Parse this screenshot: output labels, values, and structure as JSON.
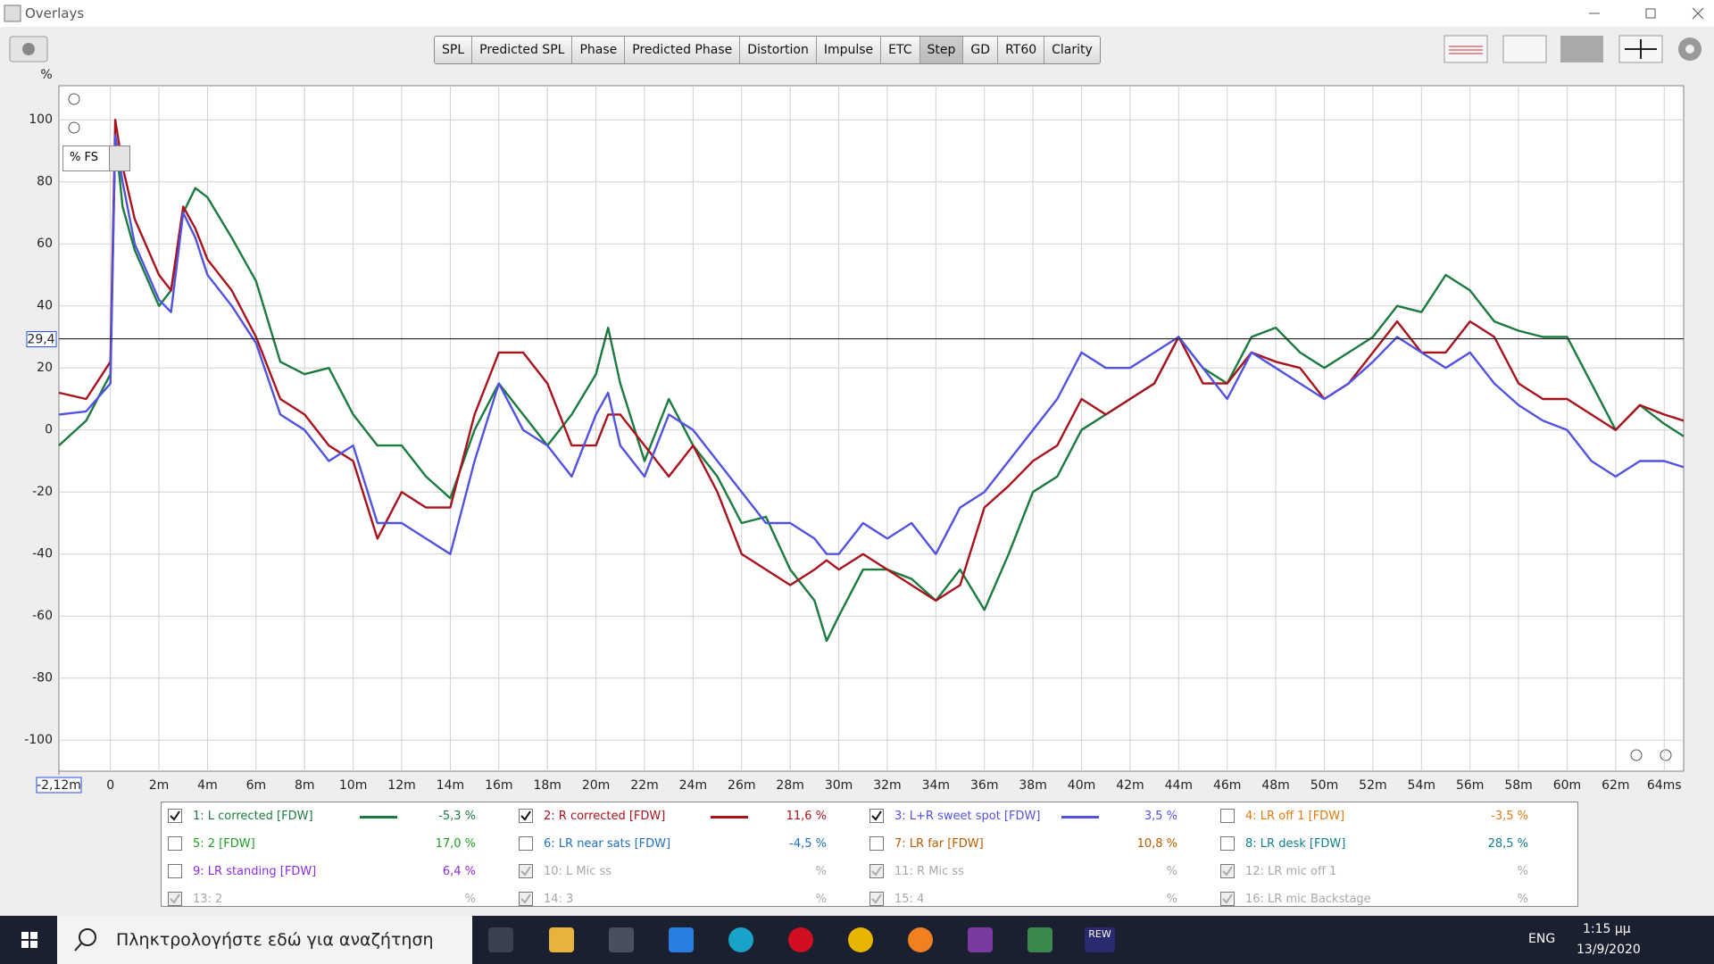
{
  "window": {
    "title": "Overlays"
  },
  "toolbar": {
    "buttons": [
      {
        "label": "SPL",
        "selected": false
      },
      {
        "label": "Predicted SPL",
        "selected": false
      },
      {
        "label": "Phase",
        "selected": false
      },
      {
        "label": "Predicted Phase",
        "selected": false
      },
      {
        "label": "Distortion",
        "selected": false
      },
      {
        "label": "Impulse",
        "selected": false
      },
      {
        "label": "ETC",
        "selected": false
      },
      {
        "label": "Step",
        "selected": true
      },
      {
        "label": "GD",
        "selected": false
      },
      {
        "label": "RT60",
        "selected": false
      },
      {
        "label": "Clarity",
        "selected": false
      }
    ]
  },
  "unit_dropdown": "% FS",
  "chart_data": {
    "type": "line",
    "y_label": "%",
    "xlim": [
      -2.12,
      64.8
    ],
    "ylim": [
      -110,
      111
    ],
    "grid": true,
    "xticks": [
      {
        "value": -2.12,
        "label": "-2,12m"
      },
      0,
      {
        "value": 2,
        "label": "2m"
      },
      {
        "value": 4,
        "label": "4m"
      },
      {
        "value": 6,
        "label": "6m"
      },
      {
        "value": 8,
        "label": "8m"
      },
      {
        "value": 10,
        "label": "10m"
      },
      {
        "value": 12,
        "label": "12m"
      },
      {
        "value": 14,
        "label": "14m"
      },
      {
        "value": 16,
        "label": "16m"
      },
      {
        "value": 18,
        "label": "18m"
      },
      {
        "value": 20,
        "label": "20m"
      },
      {
        "value": 22,
        "label": "22m"
      },
      {
        "value": 24,
        "label": "24m"
      },
      {
        "value": 26,
        "label": "26m"
      },
      {
        "value": 28,
        "label": "28m"
      },
      {
        "value": 30,
        "label": "30m"
      },
      {
        "value": 32,
        "label": "32m"
      },
      {
        "value": 34,
        "label": "34m"
      },
      {
        "value": 36,
        "label": "36m"
      },
      {
        "value": 38,
        "label": "38m"
      },
      {
        "value": 40,
        "label": "40m"
      },
      {
        "value": 42,
        "label": "42m"
      },
      {
        "value": 44,
        "label": "44m"
      },
      {
        "value": 46,
        "label": "46m"
      },
      {
        "value": 48,
        "label": "48m"
      },
      {
        "value": 50,
        "label": "50m"
      },
      {
        "value": 52,
        "label": "52m"
      },
      {
        "value": 54,
        "label": "54m"
      },
      {
        "value": 56,
        "label": "56m"
      },
      {
        "value": 58,
        "label": "58m"
      },
      {
        "value": 60,
        "label": "60m"
      },
      {
        "value": 62,
        "label": "62m"
      },
      {
        "value": 64,
        "label": "64ms"
      }
    ],
    "yticks": [
      100,
      80,
      60,
      40,
      20,
      0,
      -20,
      -40,
      -60,
      -80,
      -100
    ],
    "cursor": {
      "value": 29.4,
      "label": "29,4"
    },
    "x": [
      -2.12,
      -1,
      0,
      0.2,
      0.5,
      1,
      2,
      2.5,
      3,
      3.5,
      4,
      5,
      6,
      7,
      8,
      9,
      10,
      11,
      12,
      13,
      14,
      15,
      16,
      17,
      18,
      19,
      20,
      20.5,
      21,
      22,
      23,
      24,
      25,
      26,
      27,
      28,
      29,
      29.5,
      30,
      31,
      32,
      33,
      34,
      35,
      36,
      37,
      38,
      39,
      40,
      41,
      42,
      43,
      44,
      45,
      46,
      47,
      48,
      49,
      50,
      51,
      52,
      53,
      54,
      55,
      56,
      57,
      58,
      59,
      60,
      61,
      62,
      63,
      64,
      64.8
    ],
    "series": [
      {
        "name": "1: L corrected [FDW]",
        "color": "#1b7a3e",
        "reading": "-5,3 %",
        "values": [
          -5,
          3,
          18,
          95,
          72,
          58,
          40,
          45,
          70,
          78,
          75,
          62,
          48,
          22,
          18,
          20,
          5,
          -5,
          -5,
          -15,
          -22,
          0,
          15,
          5,
          -5,
          5,
          18,
          33,
          15,
          -10,
          10,
          -5,
          -15,
          -30,
          -28,
          -45,
          -55,
          -68,
          -60,
          -45,
          -45,
          -48,
          -55,
          -45,
          -58,
          -40,
          -20,
          -15,
          0,
          5,
          10,
          15,
          30,
          20,
          15,
          30,
          33,
          25,
          20,
          25,
          30,
          40,
          38,
          50,
          45,
          35,
          32,
          30,
          30,
          15,
          0,
          8,
          2,
          -2
        ]
      },
      {
        "name": "2: R corrected [FDW]",
        "color": "#a8121c",
        "reading": "11,6 %",
        "values": [
          12,
          10,
          22,
          100,
          85,
          68,
          50,
          45,
          72,
          65,
          55,
          45,
          30,
          10,
          5,
          -5,
          -10,
          -35,
          -20,
          -25,
          -25,
          5,
          25,
          25,
          15,
          -5,
          -5,
          5,
          5,
          -5,
          -15,
          -5,
          -20,
          -40,
          -45,
          -50,
          -45,
          -42,
          -45,
          -40,
          -45,
          -50,
          -55,
          -50,
          -25,
          -18,
          -10,
          -5,
          10,
          5,
          10,
          15,
          30,
          15,
          15,
          25,
          22,
          20,
          10,
          15,
          25,
          35,
          25,
          25,
          35,
          30,
          15,
          10,
          10,
          5,
          0,
          8,
          5,
          3
        ]
      },
      {
        "name": "3: L+R sweet spot [FDW]",
        "color": "#5252e0",
        "reading": "3,5 %",
        "values": [
          5,
          6,
          15,
          95,
          80,
          60,
          42,
          38,
          70,
          62,
          50,
          40,
          28,
          5,
          0,
          -10,
          -5,
          -30,
          -30,
          -35,
          -40,
          -10,
          15,
          0,
          -5,
          -15,
          5,
          12,
          -5,
          -15,
          5,
          0,
          -10,
          -20,
          -30,
          -30,
          -35,
          -40,
          -40,
          -30,
          -35,
          -30,
          -40,
          -25,
          -20,
          -10,
          0,
          10,
          25,
          20,
          20,
          25,
          30,
          20,
          10,
          25,
          20,
          15,
          10,
          15,
          22,
          30,
          25,
          20,
          25,
          15,
          8,
          3,
          0,
          -10,
          -15,
          -10,
          -10,
          -12
        ]
      }
    ]
  },
  "other_overlays": [
    {
      "label": "4: LR off 1 [FDW]",
      "color": "#e07a10",
      "reading": "-3,5 %",
      "checked": false,
      "enabled": true
    },
    {
      "label": "5: 2 [FDW]",
      "color": "#1fa01f",
      "reading": "17,0 %",
      "checked": false,
      "enabled": true
    },
    {
      "label": "6: LR near sats [FDW]",
      "color": "#1f6ec0",
      "reading": "-4,5 %",
      "checked": false,
      "enabled": true
    },
    {
      "label": "7: LR far [FDW]",
      "color": "#c05a00",
      "reading": "10,8 %",
      "checked": false,
      "enabled": true
    },
    {
      "label": "8: LR desk [FDW]",
      "color": "#0f7f86",
      "reading": "28,5 %",
      "checked": false,
      "enabled": true
    },
    {
      "label": "9: LR standing [FDW]",
      "color": "#8a2be2",
      "reading": "6,4 %",
      "checked": false,
      "enabled": true
    },
    {
      "label": "10: L Mic ss",
      "color": "#a8a8a8",
      "reading": "%",
      "checked": true,
      "enabled": false
    },
    {
      "label": "11: R Mic ss",
      "color": "#a8a8a8",
      "reading": "%",
      "checked": true,
      "enabled": false
    },
    {
      "label": "12: LR mic off 1",
      "color": "#a8a8a8",
      "reading": "%",
      "checked": true,
      "enabled": false
    },
    {
      "label": "13: 2",
      "color": "#a8a8a8",
      "reading": "%",
      "checked": true,
      "enabled": false
    },
    {
      "label": "14: 3",
      "color": "#a8a8a8",
      "reading": "%",
      "checked": true,
      "enabled": false
    },
    {
      "label": "15: 4",
      "color": "#a8a8a8",
      "reading": "%",
      "checked": true,
      "enabled": false
    },
    {
      "label": "16: LR mic Backstage",
      "color": "#a8a8a8",
      "reading": "%",
      "checked": true,
      "enabled": false
    }
  ],
  "taskbar": {
    "search_placeholder": "Πληκτρολογήστε εδώ για αναζήτηση",
    "app_badge": "REW",
    "language": "ENG",
    "time": "1:15 μμ",
    "date": "13/9/2020"
  }
}
